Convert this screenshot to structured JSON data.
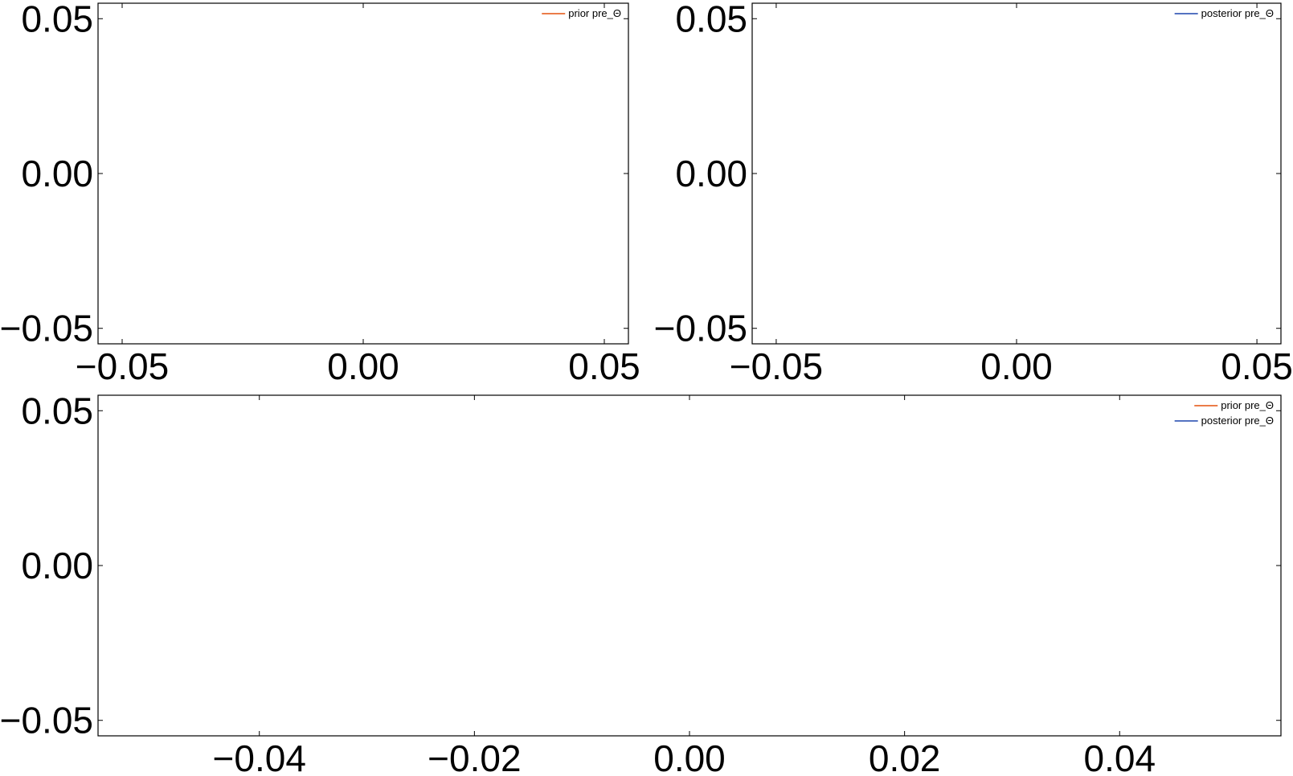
{
  "chart_data": [
    {
      "id": "top-left",
      "type": "line",
      "title": "",
      "xlabel": "",
      "ylabel": "",
      "xlim": [
        -0.055,
        0.055
      ],
      "ylim": [
        -0.055,
        0.055
      ],
      "xticks": [
        -0.05,
        0.0,
        0.05
      ],
      "yticks": [
        -0.05,
        0.0,
        0.05
      ],
      "xtick_labels": [
        "−0.05",
        "0.00",
        "0.05"
      ],
      "ytick_labels": [
        "−0.05",
        "0.00",
        "0.05"
      ],
      "grid": false,
      "legend_position": "top-right",
      "series": [
        {
          "name": "prior pre_Θ",
          "color": "#e8692f",
          "x": [],
          "y": []
        }
      ]
    },
    {
      "id": "top-right",
      "type": "line",
      "title": "",
      "xlabel": "",
      "ylabel": "",
      "xlim": [
        -0.055,
        0.055
      ],
      "ylim": [
        -0.055,
        0.055
      ],
      "xticks": [
        -0.05,
        0.0,
        0.05
      ],
      "yticks": [
        -0.05,
        0.0,
        0.05
      ],
      "xtick_labels": [
        "−0.05",
        "0.00",
        "0.05"
      ],
      "ytick_labels": [
        "−0.05",
        "0.00",
        "0.05"
      ],
      "grid": false,
      "legend_position": "top-right",
      "series": [
        {
          "name": "posterior pre_Θ",
          "color": "#3b5fb8",
          "x": [],
          "y": []
        }
      ]
    },
    {
      "id": "bottom",
      "type": "line",
      "title": "",
      "xlabel": "",
      "ylabel": "",
      "xlim": [
        -0.055,
        0.055
      ],
      "ylim": [
        -0.055,
        0.055
      ],
      "xticks": [
        -0.04,
        -0.02,
        0.0,
        0.02,
        0.04
      ],
      "yticks": [
        -0.05,
        0.0,
        0.05
      ],
      "xtick_labels": [
        "−0.04",
        "−0.02",
        "0.00",
        "0.02",
        "0.04"
      ],
      "ytick_labels": [
        "−0.05",
        "0.00",
        "0.05"
      ],
      "grid": false,
      "legend_position": "top-right",
      "series": [
        {
          "name": "prior pre_Θ",
          "color": "#e8692f",
          "x": [],
          "y": []
        },
        {
          "name": "posterior pre_Θ",
          "color": "#3b5fb8",
          "x": [],
          "y": []
        }
      ]
    }
  ]
}
